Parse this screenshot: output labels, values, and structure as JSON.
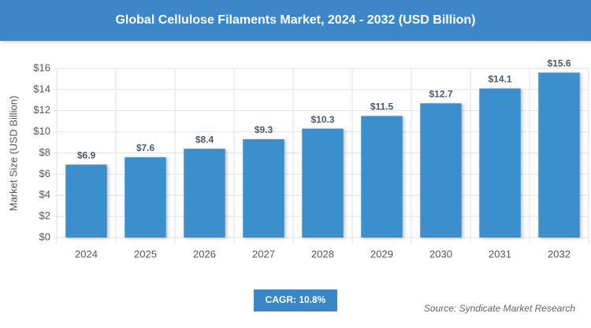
{
  "chart_data": {
    "type": "bar",
    "title": "Global Cellulose Filaments Market, 2024 - 2032 (USD Billion)",
    "y_axis_label": "Market Size (USD Billion)",
    "categories": [
      "2024",
      "2025",
      "2026",
      "2027",
      "2028",
      "2029",
      "2030",
      "2031",
      "2032"
    ],
    "values": [
      6.9,
      7.6,
      8.4,
      9.3,
      10.3,
      11.5,
      12.7,
      14.1,
      15.6
    ],
    "value_labels": [
      "$6.9",
      "$7.6",
      "$8.4",
      "$9.3",
      "$10.3",
      "$11.5",
      "$12.7",
      "$14.1",
      "$15.6"
    ],
    "color": "#3a8fcc",
    "ylim": [
      0,
      16
    ],
    "yticks": [
      {
        "value": 0,
        "label": "$0"
      },
      {
        "value": 2,
        "label": "$2"
      },
      {
        "value": 4,
        "label": "$4"
      },
      {
        "value": 6,
        "label": "$6"
      },
      {
        "value": 8,
        "label": "$8"
      },
      {
        "value": 10,
        "label": "$10"
      },
      {
        "value": 12,
        "label": "$12"
      },
      {
        "value": 14,
        "label": "$14"
      },
      {
        "value": 16,
        "label": "$16"
      }
    ],
    "grid": true,
    "cagr": "CAGR: 10.8%",
    "source": "Source: Syndicate Market Research"
  }
}
